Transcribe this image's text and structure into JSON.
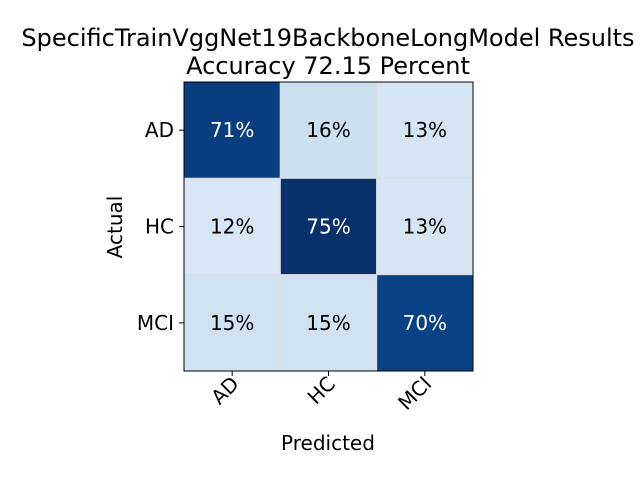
{
  "chart_data": {
    "type": "heatmap",
    "title_line1": "SpecificTrainVggNet19BackboneLongModel Results",
    "title_line2": "Accuracy 72.15 Percent",
    "xlabel": "Predicted",
    "ylabel": "Actual",
    "x_categories": [
      "AD",
      "HC",
      "MCI"
    ],
    "y_categories": [
      "AD",
      "HC",
      "MCI"
    ],
    "values": [
      [
        71,
        16,
        13
      ],
      [
        12,
        75,
        13
      ],
      [
        15,
        15,
        70
      ]
    ],
    "value_suffix": "%",
    "colormap": "Blues",
    "vmin": 0,
    "vmax": 75,
    "colors": {
      "text_on_dark": "#ffffff",
      "text_on_light": "#000000",
      "axis": "#000000",
      "grid": "#d9dde3"
    }
  }
}
